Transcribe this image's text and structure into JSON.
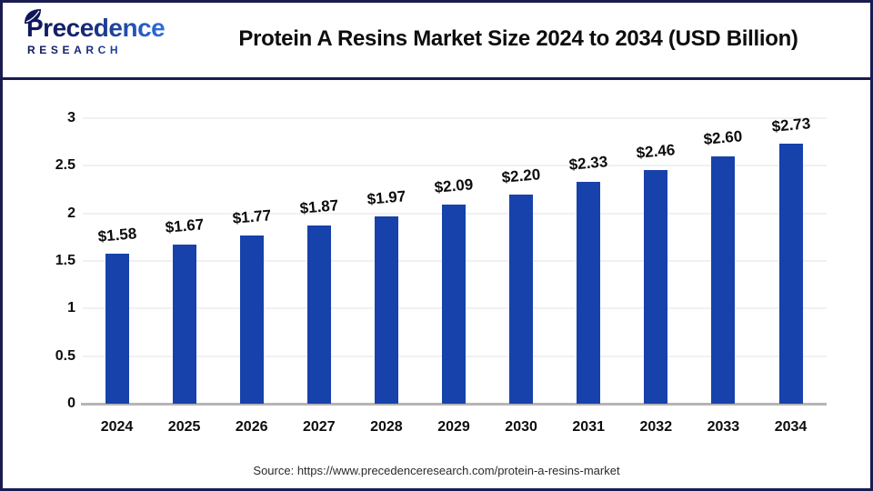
{
  "header": {
    "logo": {
      "line1": "Precedence",
      "line2": "RESEARCH"
    },
    "title": "Protein A Resins Market Size 2024 to 2034 (USD Billion)"
  },
  "chart_data": {
    "type": "bar",
    "title": "Protein A Resins Market Size 2024 to 2034 (USD Billion)",
    "categories": [
      "2024",
      "2025",
      "2026",
      "2027",
      "2028",
      "2029",
      "2030",
      "2031",
      "2032",
      "2033",
      "2034"
    ],
    "values": [
      1.58,
      1.67,
      1.77,
      1.87,
      1.97,
      2.09,
      2.2,
      2.33,
      2.46,
      2.6,
      2.73
    ],
    "value_labels": [
      "$1.58",
      "$1.67",
      "$1.77",
      "$1.87",
      "$1.97",
      "$2.09",
      "$2.20",
      "$2.33",
      "$2.46",
      "$2.60",
      "$2.73"
    ],
    "xlabel": "",
    "ylabel": "",
    "ylim": [
      0,
      3
    ],
    "yticks": [
      0,
      0.5,
      1,
      1.5,
      2,
      2.5,
      3
    ],
    "ytick_labels": [
      "0",
      "0.5",
      "1",
      "1.5",
      "2",
      "2.5",
      "3"
    ],
    "grid": true,
    "legend": false,
    "bar_color": "#1742ab"
  },
  "footer": {
    "source": "Source: https://www.precedenceresearch.com/protein-a-resins-market"
  },
  "colors": {
    "bar": "#1742ab",
    "frame_border": "#1a1c4f",
    "gridline": "#f1f1f1",
    "axis_line": "#b5b5b5",
    "text": "#0d0d0d",
    "logo_dark": "#10165a",
    "logo_light": "#2e6ede"
  }
}
